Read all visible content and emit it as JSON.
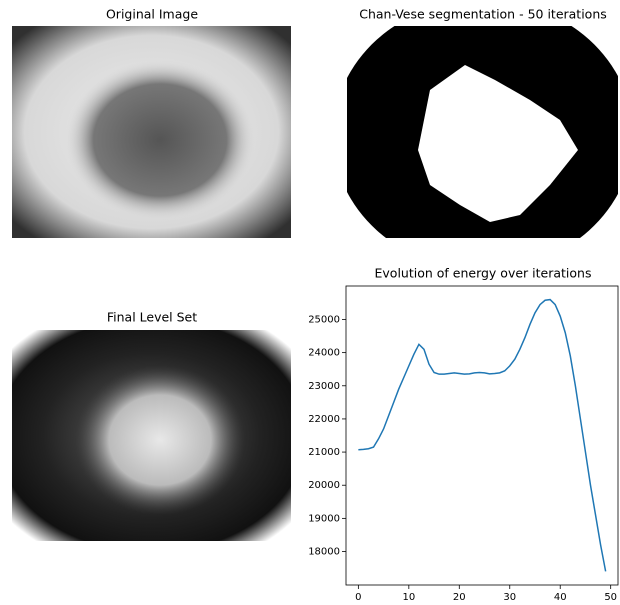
{
  "images": [
    {
      "title": "Original Image"
    },
    {
      "title": "Chan-Vese segmentation - 50 iterations"
    },
    {
      "title": "Final Level Set"
    }
  ],
  "chart_data": {
    "type": "line",
    "title": "Evolution of energy over iterations",
    "x": [
      0,
      1,
      2,
      3,
      4,
      5,
      6,
      7,
      8,
      9,
      10,
      11,
      12,
      13,
      14,
      15,
      16,
      17,
      18,
      19,
      20,
      21,
      22,
      23,
      24,
      25,
      26,
      27,
      28,
      29,
      30,
      31,
      32,
      33,
      34,
      35,
      36,
      37,
      38,
      39,
      40,
      41,
      42,
      43,
      44,
      45,
      46,
      47,
      48,
      49
    ],
    "series": [
      {
        "color": "#1f77b4",
        "values": [
          21070,
          21080,
          21100,
          21150,
          21400,
          21700,
          22100,
          22500,
          22900,
          23250,
          23600,
          23950,
          24250,
          24100,
          23650,
          23400,
          23350,
          23350,
          23370,
          23390,
          23370,
          23350,
          23360,
          23390,
          23400,
          23390,
          23360,
          23370,
          23390,
          23450,
          23600,
          23800,
          24100,
          24450,
          24850,
          25200,
          25450,
          25580,
          25600,
          25450,
          25100,
          24600,
          23900,
          23000,
          22000,
          21000,
          20000,
          19100,
          18200,
          17400
        ]
      }
    ],
    "xlim": [
      -2.45,
      51.45
    ],
    "ylim": [
      16990,
      26010
    ],
    "xticks": [
      0,
      10,
      20,
      30,
      40,
      50
    ],
    "yticks": [
      18000,
      19000,
      20000,
      21000,
      22000,
      23000,
      24000,
      25000
    ]
  }
}
